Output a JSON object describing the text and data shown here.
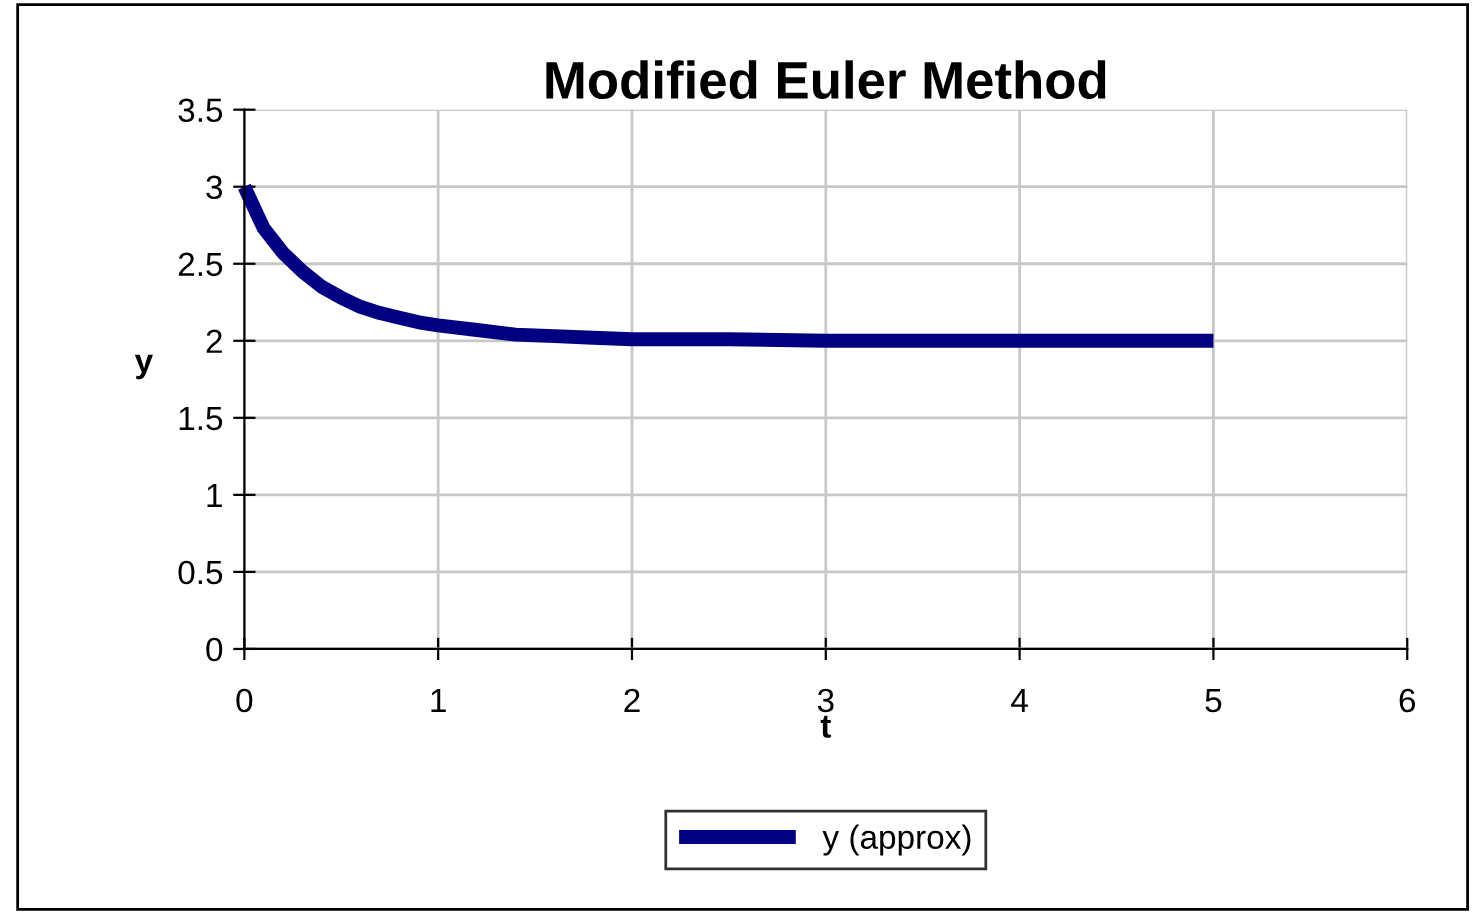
{
  "chart_data": {
    "type": "line",
    "title": "Modified Euler Method",
    "xlabel": "t",
    "ylabel": "y",
    "x": [
      0,
      0.1,
      0.2,
      0.3,
      0.4,
      0.5,
      0.6,
      0.7,
      0.8,
      0.9,
      1.0,
      1.2,
      1.4,
      1.6,
      1.8,
      2.0,
      2.5,
      3.0,
      3.5,
      4.0,
      4.5,
      5.0
    ],
    "series": [
      {
        "name": "y (approx)",
        "color": "#000080",
        "values": [
          3.0,
          2.73,
          2.57,
          2.45,
          2.35,
          2.28,
          2.22,
          2.18,
          2.15,
          2.12,
          2.1,
          2.07,
          2.04,
          2.03,
          2.02,
          2.01,
          2.01,
          2.0,
          2.0,
          2.0,
          2.0,
          2.0
        ]
      }
    ],
    "xlim": [
      0,
      6
    ],
    "xticks": [
      0,
      1,
      2,
      3,
      4,
      5,
      6
    ],
    "ylim": [
      0,
      3.5
    ],
    "yticks": [
      0,
      0.5,
      1,
      1.5,
      2,
      2.5,
      3,
      3.5
    ],
    "grid": true,
    "legend": "bottom",
    "marker": "none",
    "line_style": "solid"
  }
}
